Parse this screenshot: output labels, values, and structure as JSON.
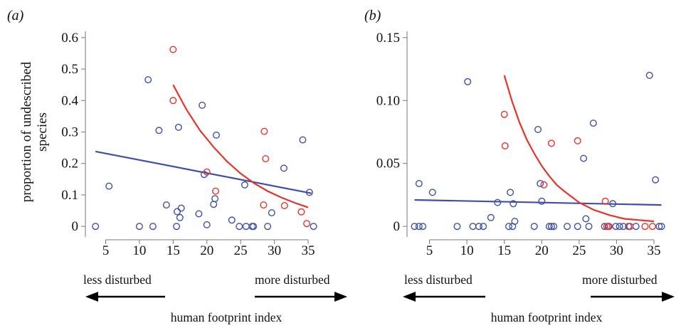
{
  "chart_data": [
    {
      "type": "scatter",
      "panel_label": "(a)",
      "ylabel_line1": "proportion of undescribed",
      "ylabel_line2": "species",
      "xlabel": "human footprint index",
      "left_arrow_label": "less disturbed",
      "right_arrow_label": "more disturbed",
      "xlim": [
        2,
        37
      ],
      "ylim": [
        -0.02,
        0.62
      ],
      "x_ticks": [
        5,
        10,
        15,
        20,
        25,
        30,
        35
      ],
      "y_ticks": [
        0,
        0.1,
        0.2,
        0.3,
        0.4,
        0.5,
        0.6
      ],
      "y_tick_labels": [
        "0",
        "0.1",
        "0.2",
        "0.3",
        "0.4",
        "0.5",
        "0.6"
      ],
      "grid": false,
      "colors": {
        "blue": "#3f4fa8",
        "red": "#e8332a"
      },
      "series": [
        {
          "color_key": "blue",
          "points": [
            [
              3.5,
              0.0
            ],
            [
              5.5,
              0.128
            ],
            [
              10,
              0.0
            ],
            [
              11.3,
              0.466
            ],
            [
              12,
              0.0
            ],
            [
              12.9,
              0.305
            ],
            [
              14,
              0.068
            ],
            [
              15.5,
              0.0
            ],
            [
              15.6,
              0.047
            ],
            [
              15.8,
              0.315
            ],
            [
              16.0,
              0.028
            ],
            [
              16.2,
              0.058
            ],
            [
              18.8,
              0.04
            ],
            [
              19.3,
              0.385
            ],
            [
              19.6,
              0.165
            ],
            [
              20.0,
              0.005
            ],
            [
              21.0,
              0.07
            ],
            [
              21.2,
              0.088
            ],
            [
              21.4,
              0.29
            ],
            [
              23.7,
              0.02
            ],
            [
              24.8,
              0.0
            ],
            [
              25.6,
              0.132
            ],
            [
              25.8,
              0.0
            ],
            [
              26.7,
              0.0
            ],
            [
              26.9,
              0.0
            ],
            [
              29.0,
              0.0
            ],
            [
              29.6,
              0.043
            ],
            [
              31.4,
              0.185
            ],
            [
              34.2,
              0.275
            ],
            [
              35.2,
              0.108
            ],
            [
              35.8,
              0.0
            ]
          ],
          "fit": [
            [
              3.5,
              0.238
            ],
            [
              35.5,
              0.105
            ]
          ]
        },
        {
          "color_key": "red",
          "points": [
            [
              15.0,
              0.562
            ],
            [
              15.0,
              0.4
            ],
            [
              20.0,
              0.173
            ],
            [
              21.3,
              0.112
            ],
            [
              28.5,
              0.302
            ],
            [
              28.7,
              0.215
            ],
            [
              28.4,
              0.068
            ],
            [
              31.5,
              0.066
            ],
            [
              34.0,
              0.046
            ],
            [
              34.8,
              0.009
            ]
          ],
          "fit": [
            [
              15,
              0.45
            ],
            [
              17,
              0.37
            ],
            [
              19,
              0.304
            ],
            [
              21,
              0.252
            ],
            [
              23,
              0.206
            ],
            [
              25,
              0.168
            ],
            [
              27,
              0.137
            ],
            [
              29,
              0.112
            ],
            [
              31,
              0.092
            ],
            [
              33,
              0.075
            ],
            [
              35,
              0.06
            ]
          ]
        }
      ]
    },
    {
      "type": "scatter",
      "panel_label": "(b)",
      "xlabel": "human footprint index",
      "left_arrow_label": "less disturbed",
      "right_arrow_label": "more disturbed",
      "xlim": [
        2,
        37
      ],
      "ylim": [
        -0.005,
        0.155
      ],
      "x_ticks": [
        5,
        10,
        15,
        20,
        25,
        30,
        35
      ],
      "y_ticks": [
        0,
        0.05,
        0.1,
        0.15
      ],
      "y_tick_labels": [
        "0",
        "0.05",
        "0.10",
        "0.15"
      ],
      "grid": false,
      "colors": {
        "blue": "#3f4fa8",
        "red": "#e8332a"
      },
      "series": [
        {
          "color_key": "blue",
          "points": [
            [
              3.0,
              0.0
            ],
            [
              3.6,
              0.0
            ],
            [
              4.1,
              0.0
            ],
            [
              3.6,
              0.034
            ],
            [
              5.4,
              0.027
            ],
            [
              8.7,
              0.0
            ],
            [
              10.1,
              0.115
            ],
            [
              10.8,
              0.0
            ],
            [
              11.6,
              0.0
            ],
            [
              12.2,
              0.0
            ],
            [
              13.2,
              0.007
            ],
            [
              14.1,
              0.019
            ],
            [
              15.6,
              0.0
            ],
            [
              15.8,
              0.027
            ],
            [
              16.1,
              0.0
            ],
            [
              16.2,
              0.018
            ],
            [
              16.4,
              0.004
            ],
            [
              19.0,
              0.0
            ],
            [
              19.5,
              0.077
            ],
            [
              19.8,
              0.034
            ],
            [
              20.0,
              0.02
            ],
            [
              21.0,
              0.0
            ],
            [
              21.3,
              0.0
            ],
            [
              21.6,
              0.0
            ],
            [
              23.4,
              0.0
            ],
            [
              24.8,
              0.0
            ],
            [
              25.6,
              0.054
            ],
            [
              25.9,
              0.006
            ],
            [
              26.3,
              0.0
            ],
            [
              26.9,
              0.082
            ],
            [
              28.4,
              0.0
            ],
            [
              28.9,
              0.0
            ],
            [
              29.5,
              0.018
            ],
            [
              29.9,
              0.0
            ],
            [
              30.4,
              0.0
            ],
            [
              30.9,
              0.0
            ],
            [
              31.6,
              0.0
            ],
            [
              32.6,
              0.0
            ],
            [
              34.4,
              0.12
            ],
            [
              35.2,
              0.037
            ],
            [
              35.7,
              0.0
            ],
            [
              36.0,
              0.0
            ]
          ],
          "fit": [
            [
              3,
              0.021
            ],
            [
              36,
              0.017
            ]
          ]
        },
        {
          "color_key": "red",
          "points": [
            [
              15.0,
              0.089
            ],
            [
              15.1,
              0.064
            ],
            [
              20.3,
              0.033
            ],
            [
              21.3,
              0.066
            ],
            [
              24.8,
              0.068
            ],
            [
              28.5,
              0.02
            ],
            [
              28.7,
              0.0
            ],
            [
              29.0,
              0.0
            ],
            [
              31.8,
              0.0
            ],
            [
              33.8,
              0.0
            ],
            [
              34.8,
              0.0
            ]
          ],
          "fit": [
            [
              15,
              0.12
            ],
            [
              16,
              0.1
            ],
            [
              17,
              0.083
            ],
            [
              18,
              0.069
            ],
            [
              19,
              0.058
            ],
            [
              20,
              0.048
            ],
            [
              21,
              0.04
            ],
            [
              22,
              0.033
            ],
            [
              23,
              0.028
            ],
            [
              25,
              0.019
            ],
            [
              27,
              0.013
            ],
            [
              29,
              0.009
            ],
            [
              31,
              0.006
            ],
            [
              33,
              0.005
            ],
            [
              35,
              0.004
            ]
          ]
        }
      ]
    }
  ]
}
